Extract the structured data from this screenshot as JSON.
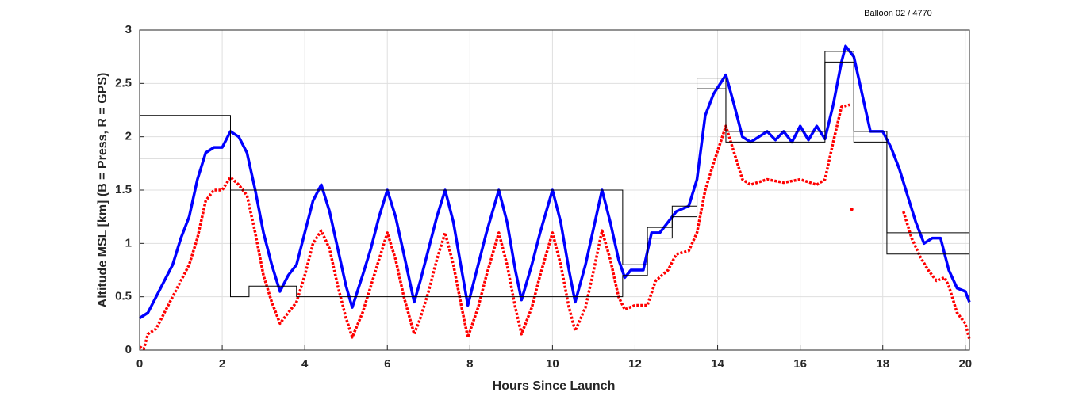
{
  "chart_data": {
    "type": "line",
    "title": "Balloon 02 / 4770",
    "xlabel": "Hours Since Launch",
    "ylabel": "Altitude MSL [km]   (B = Press, R = GPS)",
    "xlim": [
      0,
      20.1
    ],
    "xticks": [
      0,
      2,
      4,
      6,
      8,
      10,
      12,
      14,
      16,
      18,
      20
    ],
    "ylim": [
      0,
      3
    ],
    "yticks": [
      0,
      0.5,
      1,
      1.5,
      2,
      2.5,
      3
    ],
    "grid": true,
    "series": [
      {
        "color": "#0000ff",
        "x": [
          0,
          0.2,
          0.4,
          0.6,
          0.8,
          1.0,
          1.2,
          1.4,
          1.6,
          1.8,
          2.0,
          2.2,
          2.4,
          2.6,
          2.8,
          3.0,
          3.2,
          3.4,
          3.6,
          3.8,
          4.0,
          4.2,
          4.4,
          4.6,
          4.8,
          5.0,
          5.15,
          5.4,
          5.6,
          5.8,
          6.0,
          6.2,
          6.4,
          6.65,
          6.8,
          7.0,
          7.2,
          7.4,
          7.6,
          7.8,
          7.95,
          8.2,
          8.4,
          8.7,
          8.9,
          9.1,
          9.25,
          9.5,
          9.7,
          10.0,
          10.2,
          10.4,
          10.55,
          10.8,
          11.0,
          11.2,
          11.4,
          11.6,
          11.75,
          11.9,
          12.2,
          12.4,
          12.6,
          12.8,
          13.0,
          13.3,
          13.5,
          13.7,
          13.9,
          14.2,
          14.4,
          14.6,
          14.8,
          15.0,
          15.2,
          15.4,
          15.6,
          15.8,
          16.0,
          16.2,
          16.4,
          16.6,
          16.8,
          17.0,
          17.1,
          17.3,
          17.5,
          17.7,
          18.0,
          18.2,
          18.4,
          18.6,
          18.8,
          19.0,
          19.2,
          19.4,
          19.6,
          19.8,
          20.0,
          20.1
        ],
        "values": [
          0.3,
          0.35,
          0.5,
          0.65,
          0.8,
          1.05,
          1.25,
          1.6,
          1.85,
          1.9,
          1.9,
          2.05,
          2.0,
          1.85,
          1.5,
          1.1,
          0.8,
          0.55,
          0.7,
          0.8,
          1.1,
          1.4,
          1.55,
          1.3,
          0.95,
          0.6,
          0.4,
          0.7,
          0.95,
          1.25,
          1.5,
          1.25,
          0.9,
          0.45,
          0.65,
          0.95,
          1.25,
          1.5,
          1.2,
          0.75,
          0.42,
          0.8,
          1.1,
          1.5,
          1.2,
          0.75,
          0.47,
          0.8,
          1.1,
          1.5,
          1.2,
          0.75,
          0.45,
          0.8,
          1.15,
          1.5,
          1.2,
          0.85,
          0.68,
          0.75,
          0.75,
          1.1,
          1.1,
          1.2,
          1.3,
          1.35,
          1.6,
          2.2,
          2.4,
          2.58,
          2.3,
          2.0,
          1.95,
          2.0,
          2.05,
          1.97,
          2.05,
          1.95,
          2.1,
          1.97,
          2.1,
          1.98,
          2.3,
          2.7,
          2.85,
          2.75,
          2.4,
          2.05,
          2.05,
          1.9,
          1.7,
          1.45,
          1.2,
          1.0,
          1.05,
          1.05,
          0.75,
          0.58,
          0.55,
          0.45
        ]
      },
      {
        "color": "#ff0000",
        "x": [
          0,
          0.1,
          0.2,
          0.4,
          0.6,
          0.8,
          1.0,
          1.2,
          1.4,
          1.6,
          1.8,
          2.0,
          2.2,
          2.4,
          2.6,
          2.8,
          3.0,
          3.2,
          3.4,
          3.6,
          3.8,
          4.0,
          4.2,
          4.4,
          4.6,
          4.8,
          5.0,
          5.15,
          5.4,
          5.6,
          5.8,
          6.0,
          6.2,
          6.4,
          6.65,
          6.8,
          7.0,
          7.2,
          7.4,
          7.6,
          7.8,
          7.95,
          8.2,
          8.4,
          8.7,
          8.9,
          9.1,
          9.25,
          9.5,
          9.7,
          10.0,
          10.2,
          10.4,
          10.55,
          10.8,
          11.0,
          11.2,
          11.4,
          11.6,
          11.75,
          12.0,
          12.3,
          12.5,
          12.8,
          13.0,
          13.3,
          13.5,
          13.7,
          13.9,
          14.2,
          14.4,
          14.6,
          14.8,
          15.2,
          15.6,
          16.0,
          16.4,
          16.6,
          16.8,
          17.0,
          17.2,
          17.22,
          17.25,
          17.3,
          18.5,
          18.7,
          18.9,
          19.1,
          19.3,
          19.5,
          19.6,
          19.8,
          20.0,
          20.1
        ],
        "values": [
          0.03,
          0.01,
          0.15,
          0.2,
          0.35,
          0.5,
          0.65,
          0.8,
          1.05,
          1.4,
          1.5,
          1.5,
          1.62,
          1.55,
          1.45,
          1.1,
          0.7,
          0.45,
          0.25,
          0.35,
          0.45,
          0.7,
          1.0,
          1.12,
          0.95,
          0.6,
          0.3,
          0.12,
          0.35,
          0.6,
          0.85,
          1.1,
          0.85,
          0.5,
          0.15,
          0.3,
          0.55,
          0.85,
          1.1,
          0.8,
          0.4,
          0.12,
          0.4,
          0.7,
          1.1,
          0.8,
          0.4,
          0.15,
          0.4,
          0.7,
          1.1,
          0.8,
          0.4,
          0.18,
          0.4,
          0.75,
          1.12,
          0.85,
          0.5,
          0.38,
          0.42,
          0.42,
          0.65,
          0.75,
          0.9,
          0.93,
          1.1,
          1.5,
          1.75,
          2.1,
          1.85,
          1.6,
          1.55,
          1.6,
          1.57,
          1.6,
          1.55,
          1.6,
          1.95,
          2.28,
          2.3,
          null,
          1.32,
          null,
          1.3,
          1.05,
          0.88,
          0.75,
          0.65,
          0.68,
          0.6,
          0.35,
          0.25,
          0.1
        ]
      },
      {
        "color": "#000000",
        "step": true,
        "edges": [
          0,
          2.2,
          11.7,
          12.3,
          12.9,
          13.5,
          14.2,
          16.6,
          17.3,
          18.1,
          20.1
        ],
        "values": [
          2.2,
          1.5,
          0.8,
          1.15,
          1.35,
          2.55,
          2.05,
          2.8,
          2.05,
          1.1
        ]
      },
      {
        "color": "#000000",
        "step": true,
        "edges": [
          0,
          2.2,
          2.65,
          3.8,
          11.7,
          12.3,
          12.9,
          13.5,
          14.2,
          16.6,
          17.3,
          18.1,
          20.1
        ],
        "values": [
          1.8,
          0.5,
          0.6,
          0.5,
          0.7,
          1.05,
          1.25,
          2.45,
          1.95,
          2.7,
          1.95,
          0.9
        ]
      }
    ]
  }
}
